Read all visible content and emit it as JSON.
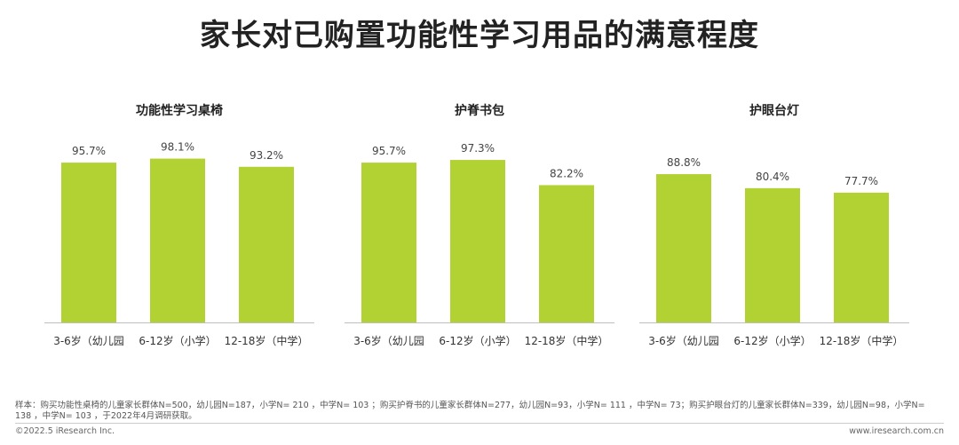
{
  "title": "家长对已购置功能性学习用品的满意程度",
  "colors": {
    "bar": "#b1d232",
    "axis": "#bfbfbf"
  },
  "chart_data": [
    {
      "type": "bar",
      "title": "功能性学习桌椅",
      "categories": [
        "3-6岁（幼儿园",
        "6-12岁（小学）",
        "12-18岁（中学）"
      ],
      "values": [
        95.7,
        98.1,
        93.2
      ],
      "value_labels": [
        "95.7%",
        "98.1%",
        "93.2%"
      ],
      "ylim": [
        0,
        100
      ],
      "grid": false
    },
    {
      "type": "bar",
      "title": "护脊书包",
      "categories": [
        "3-6岁（幼儿园",
        "6-12岁（小学）",
        "12-18岁（中学）"
      ],
      "values": [
        95.7,
        97.3,
        82.2
      ],
      "value_labels": [
        "95.7%",
        "97.3%",
        "82.2%"
      ],
      "ylim": [
        0,
        100
      ],
      "grid": false
    },
    {
      "type": "bar",
      "title": "护眼台灯",
      "categories": [
        "3-6岁（幼儿园",
        "6-12岁（小学）",
        "12-18岁（中学）"
      ],
      "values": [
        88.8,
        80.4,
        77.7
      ],
      "value_labels": [
        "88.8%",
        "80.4%",
        "77.7%"
      ],
      "ylim": [
        0,
        100
      ],
      "grid": false
    }
  ],
  "footer": {
    "note": "样本：购买功能性桌椅的儿童家长群体N=500，幼儿园N=187，小学N= 210 ，中学N= 103 ；购买护脊书的儿童家长群体N=277，幼儿园N=93，小学N= 111 ，中学N= 73；购买护眼台灯的儿童家长群体N=339，幼儿园N=98，小学N= 138 ，中学N= 103 ，于2022年4月调研获取。",
    "copyright": "©2022.5 iResearch Inc.",
    "site": "www.iresearch.com.cn"
  }
}
